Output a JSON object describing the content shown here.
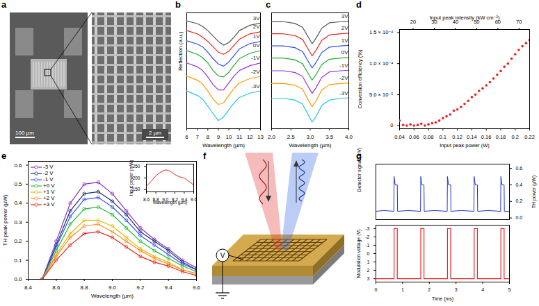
{
  "chart_data": [
    {
      "panel": "b",
      "type": "line",
      "xlabel": "Wavelength (µm)",
      "ylabel": "Reflection (a.u.)",
      "tick_labels": "x",
      "xlim": [
        6,
        13
      ],
      "xticks": [
        6,
        7,
        8,
        9,
        10,
        11,
        12,
        13
      ],
      "ylim": [
        0,
        2.15
      ],
      "x": [
        6,
        7,
        7.5,
        8,
        8.5,
        9,
        9.5,
        10,
        10.5,
        11,
        12,
        13
      ],
      "series": [
        {
          "name": "3V",
          "color": "#555555",
          "values": [
            2.0,
            1.95,
            1.9,
            1.82,
            1.72,
            1.62,
            1.55,
            1.6,
            1.7,
            1.82,
            1.92,
            1.96
          ]
        },
        {
          "name": "2V",
          "color": "#e8231f",
          "values": [
            1.82,
            1.76,
            1.7,
            1.62,
            1.52,
            1.42,
            1.38,
            1.44,
            1.55,
            1.66,
            1.76,
            1.8
          ]
        },
        {
          "name": "1V",
          "color": "#2b4bff",
          "values": [
            1.63,
            1.57,
            1.52,
            1.42,
            1.3,
            1.2,
            1.16,
            1.24,
            1.36,
            1.48,
            1.58,
            1.62
          ]
        },
        {
          "name": "0V",
          "color": "#22aa33",
          "values": [
            1.45,
            1.38,
            1.32,
            1.22,
            1.08,
            0.98,
            0.96,
            1.05,
            1.18,
            1.3,
            1.4,
            1.45
          ]
        },
        {
          "name": "-1V",
          "color": "#9b30d9",
          "values": [
            1.22,
            1.15,
            1.08,
            0.96,
            0.82,
            0.72,
            0.72,
            0.85,
            0.98,
            1.08,
            1.17,
            1.22
          ]
        },
        {
          "name": "-2V",
          "color": "#ff9900",
          "values": [
            0.98,
            0.9,
            0.83,
            0.7,
            0.55,
            0.45,
            0.48,
            0.62,
            0.75,
            0.85,
            0.93,
            0.97
          ]
        },
        {
          "name": "-3V",
          "color": "#22c4e8",
          "values": [
            0.7,
            0.62,
            0.55,
            0.42,
            0.28,
            0.15,
            0.22,
            0.35,
            0.48,
            0.58,
            0.66,
            0.7
          ]
        }
      ]
    },
    {
      "panel": "c",
      "type": "line",
      "xlabel": "Wavelength (µm)",
      "tick_labels": "x",
      "xlim": [
        2,
        4
      ],
      "xticks": [
        {
          "value": 2,
          "label": "2.0"
        },
        2.5,
        {
          "value": 3,
          "label": "3.0"
        },
        3.5,
        {
          "value": 4,
          "label": "4.0"
        }
      ],
      "ylim": [
        0,
        2.1
      ],
      "x": [
        2.0,
        2.3,
        2.6,
        2.8,
        2.95,
        3.05,
        3.15,
        3.3,
        3.5,
        3.8,
        4.0
      ],
      "series": [
        {
          "name": "3V",
          "color": "#555555",
          "values": [
            1.94,
            1.94,
            1.91,
            1.84,
            1.66,
            1.54,
            1.64,
            1.82,
            1.92,
            1.94,
            1.95
          ]
        },
        {
          "name": "2V",
          "color": "#e8231f",
          "values": [
            1.72,
            1.72,
            1.69,
            1.62,
            1.44,
            1.32,
            1.42,
            1.6,
            1.7,
            1.72,
            1.73
          ]
        },
        {
          "name": "1V",
          "color": "#2b4bff",
          "values": [
            1.5,
            1.5,
            1.47,
            1.4,
            1.22,
            1.1,
            1.2,
            1.38,
            1.48,
            1.5,
            1.51
          ]
        },
        {
          "name": "0V",
          "color": "#22aa33",
          "values": [
            1.28,
            1.28,
            1.25,
            1.18,
            1.0,
            0.88,
            0.98,
            1.16,
            1.26,
            1.28,
            1.29
          ]
        },
        {
          "name": "-1V",
          "color": "#9b30d9",
          "values": [
            1.05,
            1.05,
            1.02,
            0.95,
            0.76,
            0.64,
            0.74,
            0.93,
            1.03,
            1.05,
            1.06
          ]
        },
        {
          "name": "-2V",
          "color": "#ff9900",
          "values": [
            0.82,
            0.82,
            0.79,
            0.72,
            0.52,
            0.4,
            0.5,
            0.7,
            0.8,
            0.82,
            0.83
          ]
        },
        {
          "name": "-3V",
          "color": "#22c4e8",
          "values": [
            0.55,
            0.55,
            0.52,
            0.45,
            0.25,
            0.12,
            0.22,
            0.42,
            0.52,
            0.55,
            0.56
          ]
        }
      ]
    },
    {
      "panel": "d",
      "type": "scatter",
      "marker": "circle",
      "xlabel": "Input peak power (W)",
      "ylabel": "Conversion efficiency (%)",
      "x2label": "Input peak intensity (kW cm⁻²)",
      "xlim": [
        0.04,
        0.22
      ],
      "xticks": [
        0.04,
        0.06,
        0.08,
        0.1,
        0.12,
        0.14,
        0.16,
        0.18,
        0.2,
        0.22
      ],
      "x2lim": [
        13.6,
        75
      ],
      "x2ticks": [
        20,
        30,
        40,
        50,
        60,
        70
      ],
      "ylim": [
        -5e-06,
        0.000155
      ],
      "yticks": [
        0,
        {
          "value": 5e-05,
          "label": "5.0 × 10⁻⁵"
        },
        {
          "value": 0.0001,
          "label": "1.0 × 10⁻⁴"
        },
        {
          "value": 0.00015,
          "label": "1.5 × 10⁻⁴"
        }
      ],
      "series": [
        {
          "color": "#e8231f",
          "x": [
            0.04,
            0.045,
            0.05,
            0.055,
            0.06,
            0.065,
            0.07,
            0.075,
            0.08,
            0.085,
            0.09,
            0.095,
            0.1,
            0.105,
            0.11,
            0.115,
            0.12,
            0.125,
            0.13,
            0.135,
            0.14,
            0.145,
            0.15,
            0.155,
            0.16,
            0.165,
            0.17,
            0.175,
            0.18,
            0.185,
            0.19,
            0.195,
            0.2,
            0.205,
            0.21,
            0.215,
            0.22
          ],
          "values": [
            8e-06,
            1e-06,
            0,
            2e-06,
            0,
            1e-06,
            3e-06,
            0,
            2e-06,
            4e-06,
            5e-06,
            8e-06,
            1.2e-05,
            1.5e-05,
            1.8e-05,
            2.4e-05,
            2.6e-05,
            3e-05,
            3.5e-05,
            4e-05,
            4.6e-05,
            5e-05,
            5.6e-05,
            6e-05,
            6.5e-05,
            7e-05,
            7.6e-05,
            8.2e-05,
            8.8e-05,
            9.5e-05,
            0.0001,
            0.000108,
            0.000115,
            0.000122,
            0.000128,
            0.000133,
            0.000138
          ]
        }
      ]
    },
    {
      "panel": "e",
      "type": "line",
      "marker": "circle_open",
      "legend": "top-left",
      "xlabel": "Wavelength (µm)",
      "ylabel": "TH peak power (µW)",
      "xlim": [
        8.4,
        9.6
      ],
      "xticks": [
        8.4,
        8.6,
        8.8,
        {
          "value": 9,
          "label": "9.0"
        },
        9.2,
        9.4,
        9.6
      ],
      "ylim": [
        0,
        0.62
      ],
      "yticks": [
        {
          "value": 0,
          "label": "0.0"
        },
        0.1,
        0.2,
        0.3,
        0.4,
        0.5,
        0.6
      ],
      "x": [
        8.5,
        8.6,
        8.7,
        8.8,
        8.9,
        9.0,
        9.1,
        9.2,
        9.3,
        9.4,
        9.5,
        9.6
      ],
      "series": [
        {
          "name": "-3 V",
          "color": "#8b2fc9",
          "values": [
            0.0,
            0.2,
            0.4,
            0.5,
            0.51,
            0.45,
            0.36,
            0.27,
            0.21,
            0.16,
            0.1,
            0.06
          ]
        },
        {
          "name": "-2 V",
          "color": "#1a2a6c",
          "values": [
            0.0,
            0.18,
            0.36,
            0.45,
            0.46,
            0.41,
            0.34,
            0.25,
            0.2,
            0.15,
            0.09,
            0.05
          ]
        },
        {
          "name": "-1 V",
          "color": "#3355ff",
          "values": [
            0.0,
            0.17,
            0.33,
            0.42,
            0.43,
            0.38,
            0.31,
            0.23,
            0.18,
            0.13,
            0.08,
            0.05
          ]
        },
        {
          "name": "+0 V",
          "color": "#22bb33",
          "values": [
            0.0,
            0.15,
            0.29,
            0.37,
            0.38,
            0.34,
            0.27,
            0.2,
            0.15,
            0.11,
            0.07,
            0.04
          ]
        },
        {
          "name": "+1 V",
          "color": "#e6b800",
          "values": [
            0.0,
            0.13,
            0.24,
            0.31,
            0.31,
            0.28,
            0.22,
            0.16,
            0.12,
            0.09,
            0.05,
            0.03
          ]
        },
        {
          "name": "+2 V",
          "color": "#ff8c1a",
          "values": [
            0.0,
            0.12,
            0.22,
            0.28,
            0.29,
            0.25,
            0.2,
            0.15,
            0.11,
            0.08,
            0.05,
            0.03
          ]
        },
        {
          "name": "+3 V",
          "color": "#e8231f",
          "values": [
            0.0,
            0.1,
            0.18,
            0.24,
            0.25,
            0.22,
            0.17,
            0.12,
            0.09,
            0.07,
            0.04,
            0.02
          ]
        }
      ],
      "inset": {
        "type": "line",
        "xlabel": "Wavelength (µm)",
        "ylabel": "Input power (mW)",
        "xlim": [
          8.6,
          9.6
        ],
        "xticks": [
          8.6,
          8.8,
          {
            "value": 9,
            "label": "9.0"
          },
          9.2,
          9.4,
          9.6
        ],
        "ylim": [
          140,
          260
        ],
        "yticks": [
          150,
          200,
          250
        ],
        "x": [
          8.6,
          8.7,
          8.8,
          8.9,
          9.0,
          9.1,
          9.2,
          9.3,
          9.4,
          9.5,
          9.6
        ],
        "series": [
          {
            "color": "#e8231f",
            "values": [
              165,
              185,
              210,
              225,
              235,
              230,
              215,
              205,
              200,
              185,
              170
            ]
          }
        ]
      }
    },
    {
      "panel": "g",
      "type": "line",
      "tick_labels": "y",
      "ylabel": "Detector signal (mV)",
      "y2label": "TH power (µW)",
      "xlim": [
        0,
        5
      ],
      "y2lim": [
        -0.02,
        0.65
      ],
      "y2ticks": [
        {
          "value": 0,
          "label": "0.0"
        },
        0.2,
        0.4,
        0.6
      ],
      "series": [
        {
          "color": "#2233cc",
          "axis": "y2",
          "x": [
            0,
            0.3,
            0.67,
            0.68,
            0.72,
            0.8,
            0.81,
            1.2,
            1.67,
            1.68,
            1.72,
            1.8,
            1.81,
            2.2,
            2.67,
            2.68,
            2.72,
            2.8,
            2.81,
            3.2,
            3.67,
            3.68,
            3.72,
            3.8,
            3.81,
            4.2,
            4.67,
            4.68,
            4.72,
            4.8,
            4.81,
            5
          ],
          "values": [
            0.08,
            0.09,
            0.08,
            0.5,
            0.4,
            0.4,
            0.08,
            0.09,
            0.08,
            0.5,
            0.4,
            0.4,
            0.08,
            0.09,
            0.08,
            0.5,
            0.4,
            0.4,
            0.08,
            0.09,
            0.08,
            0.5,
            0.4,
            0.4,
            0.08,
            0.09,
            0.08,
            0.5,
            0.4,
            0.4,
            0.08,
            0.08
          ]
        }
      ]
    },
    {
      "type": "line",
      "xlabel": "Time (ms)",
      "ylabel": "Modulation voltage (V)",
      "xlim": [
        0,
        5
      ],
      "xticks": [
        0,
        1,
        2,
        3,
        4,
        5
      ],
      "ylim": [
        3.4,
        -3.4
      ],
      "yticks": [
        -3,
        -2,
        -1,
        0,
        1,
        2,
        3
      ],
      "series": [
        {
          "color": "#ee2222",
          "x": [
            0,
            0.68,
            0.68,
            0.8,
            0.8,
            1.68,
            1.68,
            1.8,
            1.8,
            2.68,
            2.68,
            2.8,
            2.8,
            3.68,
            3.68,
            3.8,
            3.8,
            4.68,
            4.68,
            4.8,
            4.8,
            5
          ],
          "values": [
            3,
            3,
            -3,
            -3,
            3,
            3,
            -3,
            -3,
            3,
            3,
            -3,
            -3,
            3,
            3,
            -3,
            -3,
            3,
            3,
            -3,
            -3,
            3,
            3
          ]
        }
      ]
    }
  ],
  "figures": [
    {
      "panel": "a",
      "type": "image",
      "scale_bars": [
        "100 µm",
        "2 µm"
      ]
    },
    {
      "panel": "f",
      "type": "diagram",
      "voltage_label": "V"
    }
  ]
}
